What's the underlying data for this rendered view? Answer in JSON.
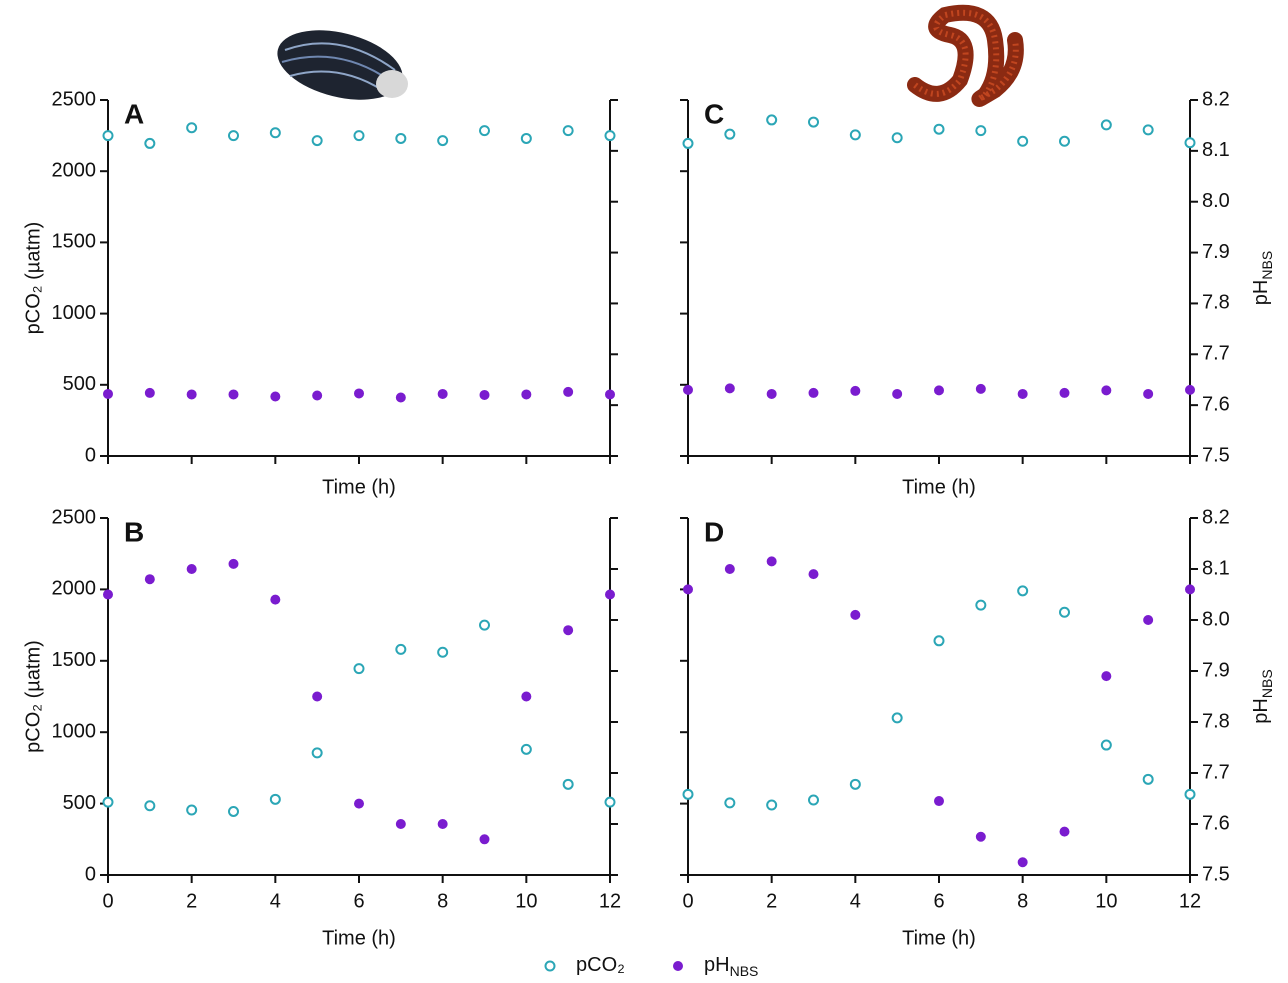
{
  "chart_data": [
    {
      "type": "scatter",
      "panel_label": "A",
      "x_label": "Time (h)",
      "y_label": "pCO₂ (µatm)",
      "x": [
        0,
        1,
        2,
        3,
        4,
        5,
        6,
        7,
        8,
        9,
        10,
        11,
        12
      ],
      "xlim": [
        0,
        12
      ],
      "xticks": [
        0,
        2,
        4,
        6,
        8,
        10,
        12
      ],
      "xtick_labels": false,
      "ylim": [
        0,
        2500
      ],
      "yticks": [
        0,
        500,
        1000,
        1500,
        2000,
        2500
      ],
      "ytick_labels": true,
      "y2lim": [
        7.5,
        8.2
      ],
      "y2ticks": [
        7.5,
        7.6,
        7.7,
        7.8,
        7.9,
        {
          "value": 8,
          "label": "8.0"
        },
        8.1,
        8.2
      ],
      "y2tick_labels": false,
      "series": [
        {
          "name": "pCO₂",
          "color": "#2ba6b6",
          "marker": "open",
          "values": [
            2250,
            2195,
            2305,
            2250,
            2270,
            2215,
            2250,
            2230,
            2215,
            2285,
            2230,
            2285,
            2250
          ]
        },
        {
          "name": "pH",
          "name_sub": "NBS",
          "color": "#7a1ccf",
          "marker": "filled",
          "axis": "y2",
          "values": [
            7.622,
            7.624,
            7.621,
            7.621,
            7.617,
            7.619,
            7.623,
            7.615,
            7.622,
            7.62,
            7.621,
            7.626,
            7.621
          ]
        }
      ]
    },
    {
      "type": "scatter",
      "panel_label": "B",
      "x_label": "Time (h)",
      "y_label": "pCO₂ (µatm)",
      "x": [
        0,
        1,
        2,
        3,
        4,
        5,
        6,
        7,
        8,
        9,
        10,
        11,
        12
      ],
      "xlim": [
        0,
        12
      ],
      "xticks": [
        0,
        2,
        4,
        6,
        8,
        10,
        12
      ],
      "xtick_labels": true,
      "ylim": [
        0,
        2500
      ],
      "yticks": [
        0,
        500,
        1000,
        1500,
        2000,
        2500
      ],
      "ytick_labels": true,
      "y2lim": [
        7.5,
        8.2
      ],
      "y2ticks": [
        7.5,
        7.6,
        7.7,
        7.8,
        7.9,
        {
          "value": 8,
          "label": "8.0"
        },
        8.1,
        8.2
      ],
      "y2tick_labels": false,
      "series": [
        {
          "name": "pCO₂",
          "color": "#2ba6b6",
          "marker": "open",
          "values": [
            510,
            485,
            455,
            445,
            530,
            855,
            1445,
            1580,
            1560,
            1750,
            880,
            635,
            510
          ]
        },
        {
          "name": "pH",
          "name_sub": "NBS",
          "color": "#7a1ccf",
          "marker": "filled",
          "axis": "y2",
          "values": [
            8.05,
            8.08,
            8.1,
            8.11,
            8.04,
            7.85,
            7.64,
            7.6,
            7.6,
            7.57,
            7.85,
            7.98,
            8.05
          ]
        }
      ]
    },
    {
      "type": "scatter",
      "panel_label": "C",
      "x_label": "Time (h)",
      "y2_label": "pH",
      "y2_label_sub": "NBS",
      "x": [
        0,
        1,
        2,
        3,
        4,
        5,
        6,
        7,
        8,
        9,
        10,
        11,
        12
      ],
      "xlim": [
        0,
        12
      ],
      "xticks": [
        0,
        2,
        4,
        6,
        8,
        10,
        12
      ],
      "xtick_labels": false,
      "ylim": [
        0,
        2500
      ],
      "yticks": [
        0,
        500,
        1000,
        1500,
        2000,
        2500
      ],
      "ytick_labels": false,
      "y2lim": [
        7.5,
        8.2
      ],
      "y2ticks": [
        7.5,
        7.6,
        7.7,
        7.8,
        7.9,
        {
          "value": 8,
          "label": "8.0"
        },
        8.1,
        8.2
      ],
      "y2tick_labels": true,
      "series": [
        {
          "name": "pCO₂",
          "color": "#2ba6b6",
          "marker": "open",
          "values": [
            2195,
            2260,
            2360,
            2345,
            2255,
            2235,
            2295,
            2285,
            2210,
            2210,
            2325,
            2290,
            2200
          ]
        },
        {
          "name": "pH",
          "name_sub": "NBS",
          "color": "#7a1ccf",
          "marker": "filled",
          "axis": "y2",
          "values": [
            7.63,
            7.633,
            7.622,
            7.624,
            7.628,
            7.622,
            7.629,
            7.632,
            7.622,
            7.624,
            7.629,
            7.622,
            7.63
          ]
        }
      ]
    },
    {
      "type": "scatter",
      "panel_label": "D",
      "x_label": "Time (h)",
      "y2_label": "pH",
      "y2_label_sub": "NBS",
      "x": [
        0,
        1,
        2,
        3,
        4,
        5,
        6,
        7,
        8,
        9,
        10,
        11,
        12
      ],
      "xlim": [
        0,
        12
      ],
      "xticks": [
        0,
        2,
        4,
        6,
        8,
        10,
        12
      ],
      "xtick_labels": true,
      "ylim": [
        0,
        2500
      ],
      "yticks": [
        0,
        500,
        1000,
        1500,
        2000,
        2500
      ],
      "ytick_labels": false,
      "y2lim": [
        7.5,
        8.2
      ],
      "y2ticks": [
        7.5,
        7.6,
        7.7,
        7.8,
        7.9,
        {
          "value": 8,
          "label": "8.0"
        },
        8.1,
        8.2
      ],
      "y2tick_labels": true,
      "series": [
        {
          "name": "pCO₂",
          "color": "#2ba6b6",
          "marker": "open",
          "values": [
            565,
            505,
            490,
            525,
            635,
            1100,
            1640,
            1890,
            1990,
            1840,
            910,
            670,
            565
          ]
        },
        {
          "name": "pH",
          "name_sub": "NBS",
          "color": "#7a1ccf",
          "marker": "filled",
          "axis": "y2",
          "values": [
            8.06,
            8.1,
            8.115,
            8.09,
            8.01,
            null,
            7.645,
            7.575,
            7.525,
            7.585,
            7.89,
            8.0,
            8.06
          ]
        }
      ]
    }
  ]
}
